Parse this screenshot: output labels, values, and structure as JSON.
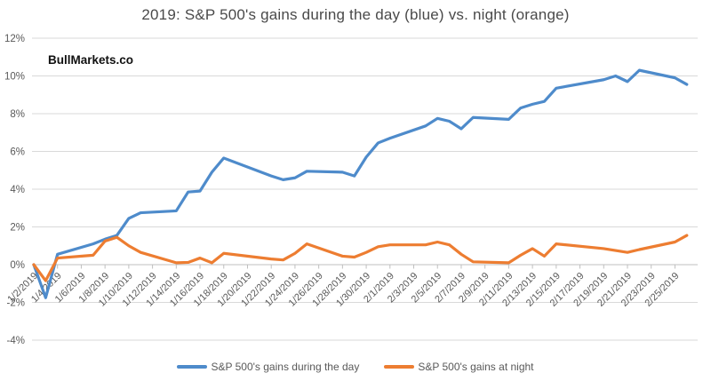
{
  "title": "2019: S&P 500's gains during the day (blue) vs. night (orange)",
  "watermark": "BullMarkets.co",
  "colors": {
    "day_line": "#4E8BCB",
    "night_line": "#ED7D31",
    "gridline": "#D9D9D9",
    "axis_line": "#BFBFBF",
    "tick_mark": "#BFBFBF",
    "axis_text": "#595959",
    "title_text": "#4A4A4A",
    "background": "#FFFFFF"
  },
  "legend": {
    "entries": [
      {
        "label": "S&P 500's gains during the day",
        "series": "day"
      },
      {
        "label": "S&P 500's gains at night",
        "series": "night"
      }
    ]
  },
  "chart_data": {
    "type": "line",
    "title": "2019: S&P 500's gains during the day (blue) vs. night (orange)",
    "xlabel": "",
    "ylabel": "",
    "y_unit": "%",
    "ylim": [
      -4,
      12
    ],
    "grid": "horizontal",
    "legend_position": "bottom",
    "x": [
      "1/2/2019",
      "1/3/2019",
      "1/4/2019",
      "1/7/2019",
      "1/8/2019",
      "1/9/2019",
      "1/10/2019",
      "1/11/2019",
      "1/14/2019",
      "1/15/2019",
      "1/16/2019",
      "1/17/2019",
      "1/18/2019",
      "1/22/2019",
      "1/23/2019",
      "1/24/2019",
      "1/25/2019",
      "1/28/2019",
      "1/29/2019",
      "1/30/2019",
      "1/31/2019",
      "2/1/2019",
      "2/4/2019",
      "2/5/2019",
      "2/6/2019",
      "2/7/2019",
      "2/8/2019",
      "2/11/2019",
      "2/12/2019",
      "2/13/2019",
      "2/14/2019",
      "2/15/2019",
      "2/19/2019",
      "2/20/2019",
      "2/21/2019",
      "2/22/2019",
      "2/25/2019",
      "2/26/2019"
    ],
    "day_offsets": [
      0,
      1,
      2,
      5,
      6,
      7,
      8,
      9,
      12,
      13,
      14,
      15,
      16,
      20,
      21,
      22,
      23,
      26,
      27,
      28,
      29,
      30,
      33,
      34,
      35,
      36,
      37,
      40,
      41,
      42,
      43,
      44,
      48,
      49,
      50,
      51,
      54,
      55
    ],
    "series": [
      {
        "name": "S&P 500's gains during the day",
        "color": "#4E8BCB",
        "values": [
          0,
          -1.75,
          0.55,
          1.1,
          1.35,
          1.55,
          2.45,
          2.75,
          2.85,
          3.85,
          3.9,
          4.9,
          5.65,
          4.7,
          4.5,
          4.6,
          4.95,
          4.9,
          4.7,
          5.7,
          6.45,
          6.7,
          7.35,
          7.75,
          7.6,
          7.2,
          7.8,
          7.7,
          8.3,
          8.5,
          8.65,
          9.35,
          9.8,
          10.0,
          9.7,
          10.3,
          9.9,
          9.55
        ]
      },
      {
        "name": "S&P 500's gains at night",
        "color": "#ED7D31",
        "values": [
          0,
          -0.85,
          0.35,
          0.5,
          1.25,
          1.45,
          1.0,
          0.65,
          0.1,
          0.12,
          0.35,
          0.1,
          0.6,
          0.3,
          0.25,
          0.6,
          1.1,
          0.45,
          0.4,
          0.65,
          0.95,
          1.05,
          1.05,
          1.2,
          1.05,
          0.55,
          0.15,
          0.1,
          0.5,
          0.85,
          0.45,
          1.1,
          0.85,
          0.75,
          0.65,
          0.8,
          1.2,
          1.55
        ]
      }
    ],
    "y_axis": {
      "ticks": [
        {
          "value": 12,
          "label": "12%"
        },
        {
          "value": 10,
          "label": "10%"
        },
        {
          "value": 8,
          "label": "8%"
        },
        {
          "value": 6,
          "label": "6%"
        },
        {
          "value": 4,
          "label": "4%"
        },
        {
          "value": 2,
          "label": "2%"
        },
        {
          "value": 0,
          "label": "0%"
        },
        {
          "value": -2,
          "label": "-2%"
        },
        {
          "value": -4,
          "label": "-4%"
        }
      ]
    },
    "x_axis": {
      "ticks": [
        {
          "day": 0,
          "label": "1/2/2019"
        },
        {
          "day": 2,
          "label": "1/4/2019"
        },
        {
          "day": 4,
          "label": "1/6/2019"
        },
        {
          "day": 6,
          "label": "1/8/2019"
        },
        {
          "day": 8,
          "label": "1/10/2019"
        },
        {
          "day": 10,
          "label": "1/12/2019"
        },
        {
          "day": 12,
          "label": "1/14/2019"
        },
        {
          "day": 14,
          "label": "1/16/2019"
        },
        {
          "day": 16,
          "label": "1/18/2019"
        },
        {
          "day": 18,
          "label": "1/20/2019"
        },
        {
          "day": 20,
          "label": "1/22/2019"
        },
        {
          "day": 22,
          "label": "1/24/2019"
        },
        {
          "day": 24,
          "label": "1/26/2019"
        },
        {
          "day": 26,
          "label": "1/28/2019"
        },
        {
          "day": 28,
          "label": "1/30/2019"
        },
        {
          "day": 30,
          "label": "2/1/2019"
        },
        {
          "day": 32,
          "label": "2/3/2019"
        },
        {
          "day": 34,
          "label": "2/5/2019"
        },
        {
          "day": 36,
          "label": "2/7/2019"
        },
        {
          "day": 38,
          "label": "2/9/2019"
        },
        {
          "day": 40,
          "label": "2/11/2019"
        },
        {
          "day": 42,
          "label": "2/13/2019"
        },
        {
          "day": 44,
          "label": "2/15/2019"
        },
        {
          "day": 46,
          "label": "2/17/2019"
        },
        {
          "day": 48,
          "label": "2/19/2019"
        },
        {
          "day": 50,
          "label": "2/21/2019"
        },
        {
          "day": 52,
          "label": "2/23/2019"
        },
        {
          "day": 54,
          "label": "2/25/2019"
        }
      ]
    }
  }
}
